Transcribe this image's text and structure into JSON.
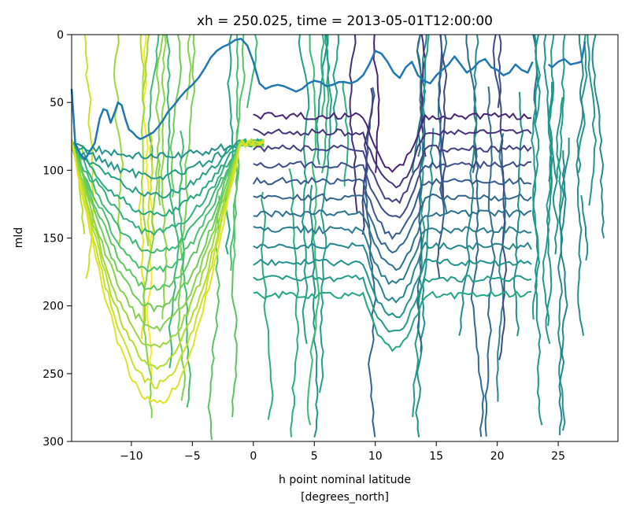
{
  "chart_data": {
    "type": "line",
    "title": "xh = 250.025, time = 2013-05-01T12:00:00",
    "xlabel_line1": "h point nominal latitude",
    "xlabel_line2": "[degrees_north]",
    "ylabel": "mld",
    "xlim": [
      -14.9,
      29.9
    ],
    "ylim": [
      300,
      0
    ],
    "xticks": [
      -10,
      -5,
      0,
      5,
      10,
      15,
      20,
      25
    ],
    "xtick_labels": [
      "−10",
      "−5",
      "0",
      "5",
      "10",
      "15",
      "20",
      "25"
    ],
    "yticks": [
      0,
      50,
      100,
      150,
      200,
      250,
      300
    ],
    "ytick_labels": [
      "0",
      "50",
      "100",
      "150",
      "200",
      "250",
      "300"
    ],
    "series": [
      {
        "color": "#1f77b4",
        "x": [
          -14.9,
          -14.6,
          -14.2,
          -13.8,
          -13.4,
          -13.0,
          -12.6,
          -12.3,
          -12.0,
          -11.7,
          -11.4,
          -11.1,
          -10.8,
          -10.5,
          -10.2,
          -9.9,
          -9.6,
          -9.3,
          -9.0,
          -8.6,
          -8.2,
          -7.8,
          -7.4,
          -7.0,
          -6.5,
          -6.0,
          -5.5,
          -5.0,
          -4.5,
          -4.0,
          -3.5,
          -3.0,
          -2.5,
          -2.0,
          -1.5,
          -1.0,
          -0.5,
          0.0,
          0.5,
          1.0,
          1.5,
          2.0,
          2.5,
          3.0,
          3.5,
          4.0,
          4.5,
          5.0,
          5.5,
          6.0,
          6.5,
          7.0,
          7.5,
          8.0,
          8.5,
          9.0,
          9.5,
          10.0,
          10.5,
          11.0,
          11.5,
          12.0,
          12.5,
          13.0,
          13.5,
          14.0,
          14.5,
          15.0,
          15.5,
          16.0,
          16.5,
          17.0,
          17.5,
          18.0,
          18.5,
          19.0,
          19.5,
          20.0,
          20.5,
          21.0,
          21.5,
          22.0,
          22.5,
          22.9
        ],
        "y": [
          40,
          80,
          88,
          92,
          86,
          80,
          62,
          55,
          56,
          65,
          58,
          50,
          52,
          62,
          70,
          72,
          75,
          77,
          76,
          74,
          72,
          68,
          63,
          57,
          52,
          46,
          41,
          37,
          32,
          25,
          17,
          12,
          9,
          7,
          4,
          3,
          8,
          20,
          36,
          40,
          38,
          37,
          38,
          40,
          42,
          40,
          36,
          34,
          35,
          38,
          37,
          35,
          35,
          36,
          34,
          30,
          22,
          12,
          14,
          20,
          28,
          32,
          24,
          20,
          30,
          34,
          36,
          30,
          26,
          22,
          16,
          22,
          28,
          25,
          20,
          18,
          24,
          26,
          30,
          28,
          22,
          26,
          28,
          20
        ],
        "x2": [
          24.2,
          24.5,
          25.0,
          25.5,
          26.0,
          26.5,
          26.9,
          27.2
        ],
        "y2": [
          22,
          24,
          20,
          18,
          22,
          21,
          20,
          5
        ]
      }
    ],
    "contour_levels": 16,
    "colormap": "viridis",
    "grid": false
  }
}
